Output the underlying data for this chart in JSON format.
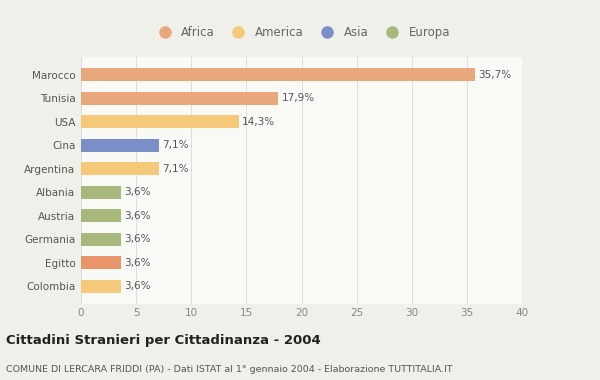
{
  "categories": [
    "Colombia",
    "Egitto",
    "Germania",
    "Austria",
    "Albania",
    "Argentina",
    "Cina",
    "USA",
    "Tunisia",
    "Marocco"
  ],
  "values": [
    3.6,
    3.6,
    3.6,
    3.6,
    3.6,
    7.1,
    7.1,
    14.3,
    17.9,
    35.7
  ],
  "labels": [
    "3,6%",
    "3,6%",
    "3,6%",
    "3,6%",
    "3,6%",
    "7,1%",
    "7,1%",
    "14,3%",
    "17,9%",
    "35,7%"
  ],
  "colors": [
    "#F5C97A",
    "#E8956A",
    "#A8B87C",
    "#A8B87C",
    "#A8B87C",
    "#F5C97A",
    "#7B8EC8",
    "#F5C97A",
    "#E8A87C",
    "#E8A87C"
  ],
  "legend_labels": [
    "Africa",
    "America",
    "Asia",
    "Europa"
  ],
  "legend_colors": [
    "#E8A87C",
    "#F5C97A",
    "#7B8EC8",
    "#A8B87C"
  ],
  "title": "Cittadini Stranieri per Cittadinanza - 2004",
  "subtitle": "COMUNE DI LERCARA FRIDDI (PA) - Dati ISTAT al 1° gennaio 2004 - Elaborazione TUTTITALIA.IT",
  "xlim": [
    0,
    40
  ],
  "xticks": [
    0,
    5,
    10,
    15,
    20,
    25,
    30,
    35,
    40
  ],
  "background_color": "#f0f0eb",
  "bar_background": "#f9f9f6"
}
